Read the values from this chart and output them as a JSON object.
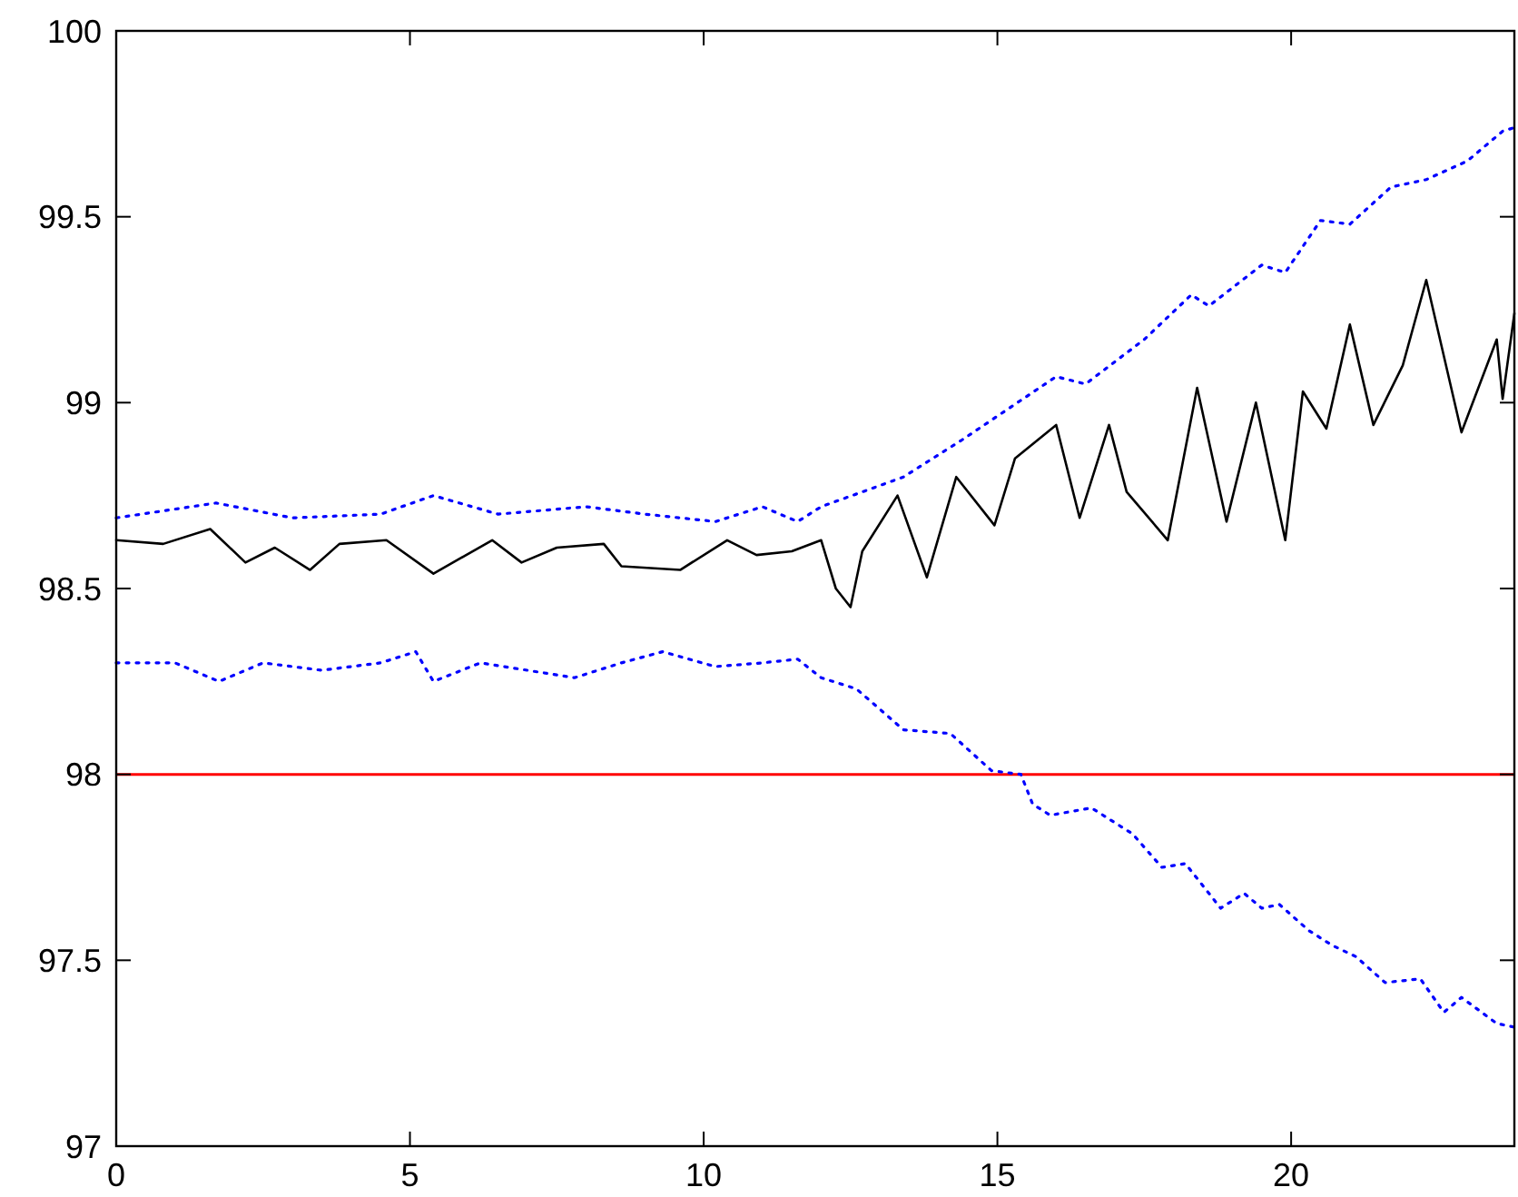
{
  "chart_data": {
    "type": "line",
    "xlim": [
      0,
      23.8
    ],
    "ylim": [
      97,
      100
    ],
    "xticks": [
      0,
      5,
      10,
      15,
      20
    ],
    "yticks": [
      97,
      97.5,
      98,
      98.5,
      99,
      99.5,
      100
    ],
    "grid": false,
    "marker": "none",
    "ref_lines": [
      {
        "axis": "y",
        "value": 98,
        "color": "#ff0000"
      }
    ],
    "series": [
      {
        "color": "#0000ff",
        "line_style": "dotted",
        "x": [
          0,
          1.7,
          3,
          4.5,
          5.4,
          6.5,
          8,
          9,
          10.2,
          11,
          11.6,
          12,
          13.4,
          14.4,
          16,
          16.5,
          17.5,
          18.3,
          18.6,
          19.5,
          19.9,
          20.5,
          21,
          21.7,
          22.3,
          23,
          23.6,
          23.8
        ],
        "values": [
          98.69,
          98.73,
          98.69,
          98.7,
          98.75,
          98.7,
          98.72,
          98.7,
          98.68,
          98.72,
          98.68,
          98.72,
          98.8,
          98.9,
          99.07,
          99.05,
          99.17,
          99.29,
          99.26,
          99.37,
          99.35,
          99.49,
          99.48,
          99.58,
          99.6,
          99.65,
          99.73,
          99.74
        ]
      },
      {
        "color": "#0000ff",
        "line_style": "dotted",
        "x": [
          0,
          1,
          1.75,
          2.5,
          3.5,
          4.5,
          5.1,
          5.4,
          6.2,
          7,
          7.8,
          8.6,
          9.3,
          10.2,
          11,
          11.6,
          12,
          12.6,
          13.4,
          14.2,
          14.9,
          15.4,
          15.6,
          15.9,
          16.6,
          17.3,
          17.8,
          18.2,
          18.8,
          19.2,
          19.5,
          19.8,
          20.3,
          20.7,
          21.1,
          21.6,
          22.2,
          22.6,
          22.9,
          23.5,
          23.8
        ],
        "values": [
          98.3,
          98.3,
          98.25,
          98.3,
          98.28,
          98.3,
          98.33,
          98.25,
          98.3,
          98.28,
          98.26,
          98.3,
          98.33,
          98.29,
          98.3,
          98.31,
          98.26,
          98.23,
          98.12,
          98.11,
          98.01,
          98,
          97.92,
          97.89,
          97.91,
          97.84,
          97.75,
          97.76,
          97.64,
          97.68,
          97.64,
          97.65,
          97.58,
          97.54,
          97.51,
          97.44,
          97.45,
          97.36,
          97.4,
          97.33,
          97.32
        ]
      },
      {
        "color": "#000000",
        "line_style": "solid",
        "x": [
          0,
          0.8,
          1.6,
          2.2,
          2.7,
          3.3,
          3.8,
          4.6,
          5.4,
          6.4,
          6.9,
          7.5,
          8.3,
          8.6,
          9.6,
          10.4,
          10.9,
          11.5,
          12,
          12.25,
          12.5,
          12.7,
          13.3,
          13.8,
          14.3,
          14.95,
          15.3,
          16,
          16.4,
          16.9,
          17.2,
          17.9,
          18.4,
          18.9,
          19.4,
          19.9,
          20.2,
          20.6,
          21,
          21.4,
          21.9,
          22.3,
          22.9,
          23.5,
          23.6,
          23.8
        ],
        "values": [
          98.63,
          98.62,
          98.66,
          98.57,
          98.61,
          98.55,
          98.62,
          98.63,
          98.54,
          98.63,
          98.57,
          98.61,
          98.62,
          98.56,
          98.55,
          98.63,
          98.59,
          98.6,
          98.63,
          98.5,
          98.45,
          98.6,
          98.75,
          98.53,
          98.8,
          98.67,
          98.85,
          98.94,
          98.69,
          98.94,
          98.76,
          98.63,
          99.04,
          98.68,
          99,
          98.63,
          99.03,
          98.93,
          99.21,
          98.94,
          99.1,
          99.33,
          98.92,
          99.17,
          99.01,
          99.24
        ]
      }
    ]
  }
}
